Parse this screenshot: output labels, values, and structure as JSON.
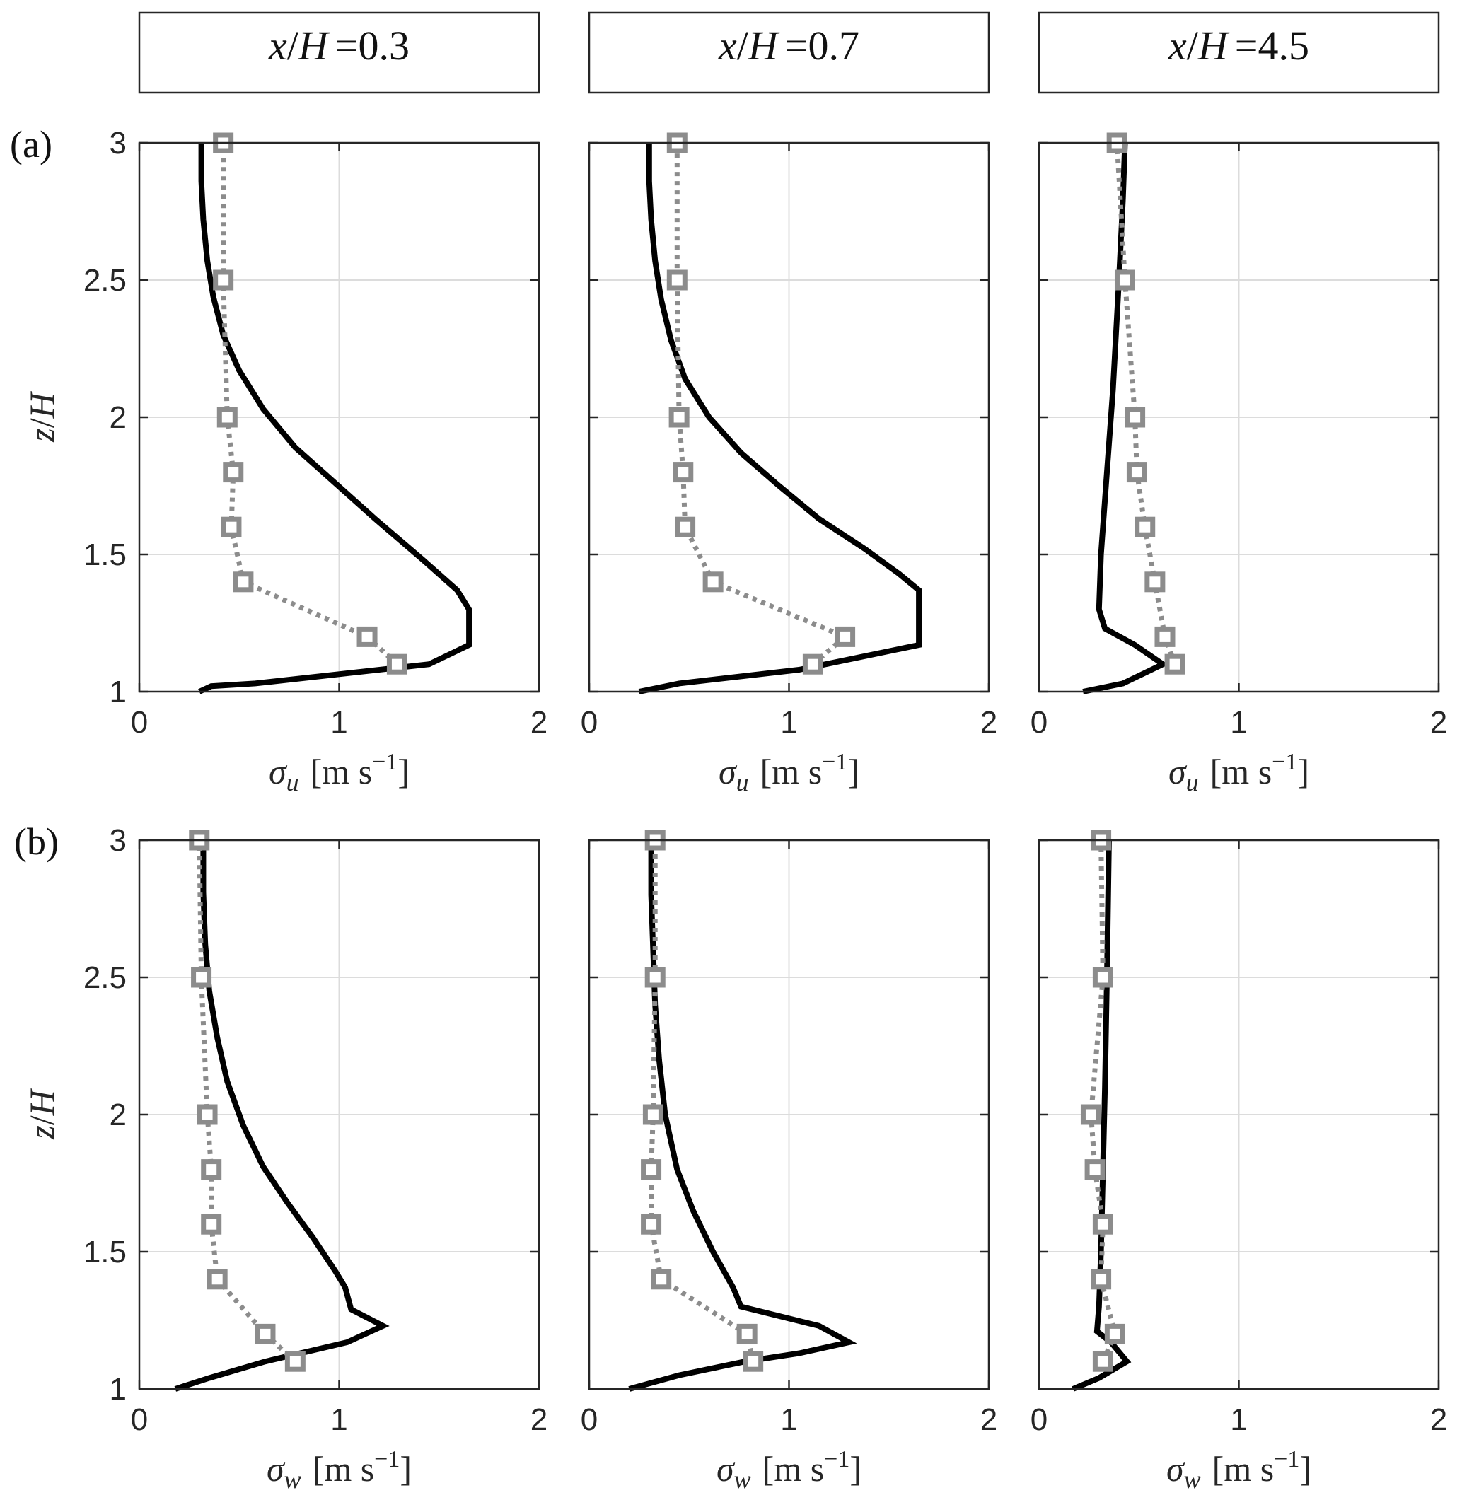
{
  "figure": {
    "row_tags": [
      "(a)",
      "(b)"
    ],
    "column_titles": [
      "x/H =0.3",
      "x/H =0.7",
      "x/H =4.5"
    ],
    "ylabel": "z/H",
    "xlabels": [
      "σu [m s−1]",
      "σw [m s−1]"
    ],
    "xticks": [
      "0",
      "1",
      "2"
    ],
    "yticks": [
      "1",
      "1.5",
      "2",
      "2.5",
      "3"
    ]
  },
  "chart_data": [
    {
      "type": "line",
      "panel": "(a) x/H =0.3",
      "xlabel": "σu [m s−1]",
      "ylabel": "z/H",
      "xlim": [
        0,
        2
      ],
      "ylim": [
        1,
        3
      ],
      "grid": true,
      "series": [
        {
          "style": "solid-black",
          "x": [
            0.3,
            0.36,
            0.58,
            1.45,
            1.65,
            1.65,
            1.59,
            1.42,
            1.18,
            0.98,
            0.78,
            0.62,
            0.5,
            0.42,
            0.37,
            0.34,
            0.32,
            0.31,
            0.31
          ],
          "y": [
            1.0,
            1.02,
            1.03,
            1.1,
            1.17,
            1.3,
            1.37,
            1.48,
            1.63,
            1.76,
            1.89,
            2.03,
            2.17,
            2.3,
            2.44,
            2.57,
            2.72,
            2.86,
            3.0
          ]
        },
        {
          "style": "dotted-gray-square",
          "x": [
            1.29,
            1.14,
            0.52,
            0.46,
            0.47,
            0.44,
            0.42,
            0.42
          ],
          "y": [
            1.1,
            1.2,
            1.4,
            1.6,
            1.8,
            2.0,
            2.5,
            3.0
          ]
        }
      ]
    },
    {
      "type": "line",
      "panel": "(a) x/H =0.7",
      "xlabel": "σu [m s−1]",
      "ylabel": "z/H",
      "xlim": [
        0,
        2
      ],
      "ylim": [
        1,
        3
      ],
      "grid": true,
      "series": [
        {
          "style": "solid-black",
          "x": [
            0.25,
            0.45,
            1.05,
            1.65,
            1.65,
            1.55,
            1.38,
            1.15,
            0.95,
            0.76,
            0.6,
            0.48,
            0.41,
            0.36,
            0.33,
            0.31,
            0.3,
            0.3
          ],
          "y": [
            1.0,
            1.03,
            1.08,
            1.17,
            1.37,
            1.43,
            1.52,
            1.63,
            1.75,
            1.87,
            2.0,
            2.14,
            2.28,
            2.43,
            2.57,
            2.72,
            2.86,
            3.0
          ]
        },
        {
          "style": "dotted-gray-square",
          "x": [
            1.12,
            1.28,
            0.62,
            0.48,
            0.47,
            0.45,
            0.44,
            0.44
          ],
          "y": [
            1.1,
            1.2,
            1.4,
            1.6,
            1.8,
            2.0,
            2.5,
            3.0
          ]
        }
      ]
    },
    {
      "type": "line",
      "panel": "(a) x/H =4.5",
      "xlabel": "σu [m s−1]",
      "ylabel": "z/H",
      "xlim": [
        0,
        2
      ],
      "ylim": [
        1,
        3
      ],
      "grid": true,
      "series": [
        {
          "style": "solid-black",
          "x": [
            0.22,
            0.42,
            0.62,
            0.48,
            0.33,
            0.3,
            0.31,
            0.34,
            0.37,
            0.4,
            0.42,
            0.43
          ],
          "y": [
            1.0,
            1.03,
            1.1,
            1.17,
            1.23,
            1.3,
            1.5,
            1.8,
            2.1,
            2.5,
            2.8,
            3.0
          ]
        },
        {
          "style": "dotted-gray-square",
          "x": [
            0.68,
            0.63,
            0.58,
            0.53,
            0.49,
            0.48,
            0.43,
            0.39
          ],
          "y": [
            1.1,
            1.2,
            1.4,
            1.6,
            1.8,
            2.0,
            2.5,
            3.0
          ]
        }
      ]
    },
    {
      "type": "line",
      "panel": "(b) x/H =0.3",
      "xlabel": "σw [m s−1]",
      "ylabel": "z/H",
      "xlim": [
        0,
        2
      ],
      "ylim": [
        1,
        3
      ],
      "grid": true,
      "series": [
        {
          "style": "solid-black",
          "x": [
            0.18,
            0.35,
            0.63,
            1.04,
            1.22,
            1.06,
            1.03,
            0.98,
            0.87,
            0.74,
            0.62,
            0.52,
            0.44,
            0.39,
            0.35,
            0.33,
            0.32,
            0.32
          ],
          "y": [
            1.0,
            1.04,
            1.1,
            1.17,
            1.23,
            1.29,
            1.37,
            1.43,
            1.55,
            1.68,
            1.81,
            1.96,
            2.12,
            2.28,
            2.45,
            2.62,
            2.81,
            3.0
          ]
        },
        {
          "style": "dotted-gray-square",
          "x": [
            0.78,
            0.63,
            0.39,
            0.36,
            0.36,
            0.34,
            0.31,
            0.3
          ],
          "y": [
            1.1,
            1.2,
            1.4,
            1.6,
            1.8,
            2.0,
            2.5,
            3.0
          ]
        }
      ]
    },
    {
      "type": "line",
      "panel": "(b) x/H =0.7",
      "xlabel": "σw [m s−1]",
      "ylabel": "z/H",
      "xlim": [
        0,
        2
      ],
      "ylim": [
        1,
        3
      ],
      "grid": true,
      "series": [
        {
          "style": "solid-black",
          "x": [
            0.2,
            0.45,
            0.78,
            1.05,
            1.3,
            1.15,
            0.76,
            0.72,
            0.62,
            0.52,
            0.44,
            0.38,
            0.35,
            0.33,
            0.32,
            0.31,
            0.31
          ],
          "y": [
            1.0,
            1.05,
            1.1,
            1.13,
            1.17,
            1.23,
            1.3,
            1.37,
            1.5,
            1.65,
            1.8,
            2.0,
            2.2,
            2.4,
            2.6,
            2.8,
            3.0
          ]
        },
        {
          "style": "dotted-gray-square",
          "x": [
            0.82,
            0.79,
            0.36,
            0.31,
            0.31,
            0.32,
            0.33,
            0.33
          ],
          "y": [
            1.1,
            1.2,
            1.4,
            1.6,
            1.8,
            2.0,
            2.5,
            3.0
          ]
        }
      ]
    },
    {
      "type": "line",
      "panel": "(b) x/H =4.5",
      "xlabel": "σw [m s−1]",
      "ylabel": "z/H",
      "xlim": [
        0,
        2
      ],
      "ylim": [
        1,
        3
      ],
      "grid": true,
      "series": [
        {
          "style": "solid-black",
          "x": [
            0.17,
            0.3,
            0.44,
            0.36,
            0.29,
            0.3,
            0.31,
            0.32,
            0.33,
            0.34,
            0.35
          ],
          "y": [
            1.0,
            1.04,
            1.1,
            1.17,
            1.21,
            1.3,
            1.5,
            1.8,
            2.1,
            2.5,
            3.0
          ]
        },
        {
          "style": "dotted-gray-square",
          "x": [
            0.32,
            0.38,
            0.31,
            0.32,
            0.28,
            0.26,
            0.32,
            0.31
          ],
          "y": [
            1.1,
            1.2,
            1.4,
            1.6,
            1.8,
            2.0,
            2.5,
            3.0
          ]
        }
      ]
    }
  ]
}
